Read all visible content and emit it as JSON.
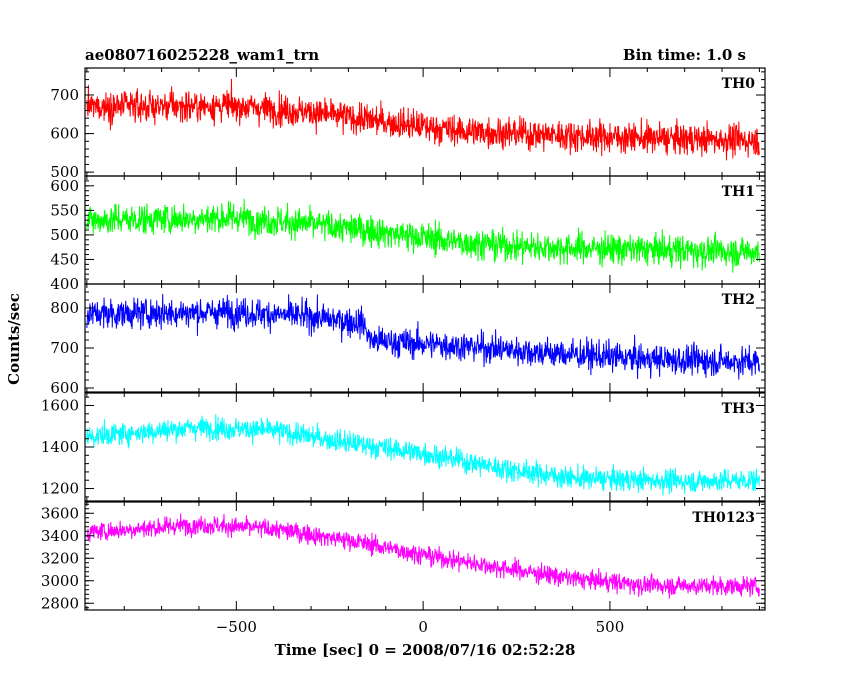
{
  "header": {
    "title": "ae080716025228_wam1_trn",
    "bin_time": "Bin time: 1.0 s"
  },
  "chart_data": {
    "type": "line",
    "xlabel": "Time [sec] 0 = 2008/07/16 02:52:28",
    "ylabel": "Counts/sec",
    "xlim": [
      -905,
      915
    ],
    "xticks": [
      -500,
      0,
      500
    ],
    "xticklabels": [
      "−500",
      "0",
      "500"
    ],
    "x_range": [
      -900,
      900
    ],
    "panels": [
      {
        "name": "TH0",
        "color": "#ff0000",
        "ylim": [
          490,
          770
        ],
        "yticks": [
          500,
          600,
          700
        ],
        "yticklabels": [
          "500",
          "600",
          "700"
        ],
        "trend": [
          [
            -900,
            670
          ],
          [
            -500,
            672
          ],
          [
            -300,
            655
          ],
          [
            -100,
            630
          ],
          [
            100,
            607
          ],
          [
            300,
            598
          ],
          [
            600,
            588
          ],
          [
            900,
            582
          ]
        ],
        "noise": 28
      },
      {
        "name": "TH1",
        "color": "#00ff00",
        "ylim": [
          400,
          620
        ],
        "yticks": [
          400,
          450,
          500,
          550,
          600
        ],
        "yticklabels": [
          "400",
          "450",
          "500",
          "550",
          "600"
        ],
        "trend": [
          [
            -900,
            530
          ],
          [
            -500,
            535
          ],
          [
            -300,
            522
          ],
          [
            -100,
            505
          ],
          [
            100,
            485
          ],
          [
            300,
            475
          ],
          [
            600,
            470
          ],
          [
            900,
            465
          ]
        ],
        "noise": 22
      },
      {
        "name": "TH2",
        "color": "#0000ff",
        "ylim": [
          590,
          860
        ],
        "yticks": [
          600,
          700,
          800
        ],
        "yticklabels": [
          "600",
          "700",
          "800"
        ],
        "trend": [
          [
            -900,
            785
          ],
          [
            -500,
            790
          ],
          [
            -300,
            778
          ],
          [
            -160,
            762
          ],
          [
            -140,
            718
          ],
          [
            100,
            705
          ],
          [
            300,
            690
          ],
          [
            600,
            672
          ],
          [
            900,
            665
          ]
        ],
        "noise": 26
      },
      {
        "name": "TH3",
        "color": "#00ffff",
        "ylim": [
          1140,
          1660
        ],
        "yticks": [
          1200,
          1400,
          1600
        ],
        "yticklabels": [
          "1200",
          "1400",
          "1600"
        ],
        "trend": [
          [
            -900,
            1450
          ],
          [
            -600,
            1495
          ],
          [
            -400,
            1480
          ],
          [
            -200,
            1420
          ],
          [
            0,
            1370
          ],
          [
            200,
            1300
          ],
          [
            400,
            1250
          ],
          [
            700,
            1235
          ],
          [
            900,
            1240
          ]
        ],
        "noise": 38
      },
      {
        "name": "TH0123",
        "color": "#ff00ff",
        "ylim": [
          2740,
          3700
        ],
        "yticks": [
          2800,
          3000,
          3200,
          3400,
          3600
        ],
        "yticklabels": [
          "2800",
          "3000",
          "3200",
          "3400",
          "3600"
        ],
        "trend": [
          [
            -900,
            3430
          ],
          [
            -600,
            3500
          ],
          [
            -400,
            3460
          ],
          [
            -200,
            3360
          ],
          [
            0,
            3230
          ],
          [
            200,
            3120
          ],
          [
            400,
            3020
          ],
          [
            600,
            2960
          ],
          [
            900,
            2950
          ]
        ],
        "noise": 60
      }
    ]
  }
}
